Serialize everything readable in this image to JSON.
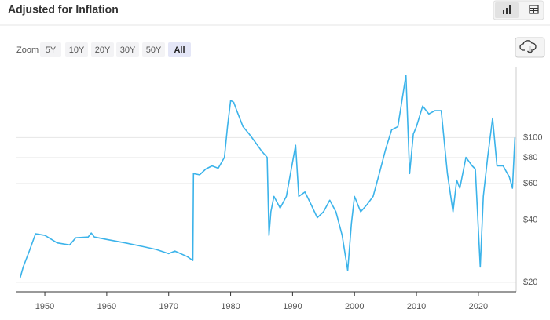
{
  "ui": {
    "zoom_label": "Zoom",
    "zoom_options": [
      "5Y",
      "10Y",
      "20Y",
      "30Y",
      "50Y",
      "All"
    ],
    "zoom_selected": 5
  },
  "chart_data": {
    "type": "line",
    "title": "Adjusted for Inflation",
    "log_scale": true,
    "grid": true,
    "color": "#3bb3ea",
    "x": [
      1946,
      1946.5,
      1947.5,
      1948.5,
      1950,
      1952,
      1954,
      1955,
      1957,
      1957.5,
      1958,
      1960,
      1963,
      1966,
      1968,
      1970,
      1971,
      1973,
      1973.9,
      1974,
      1975,
      1976,
      1977,
      1978,
      1979,
      1979.5,
      1980,
      1980.5,
      1981,
      1982,
      1983,
      1984,
      1985,
      1985.9,
      1986.2,
      1986.5,
      1987,
      1988,
      1989,
      1990.5,
      1991,
      1992,
      1993,
      1994,
      1995,
      1996,
      1997,
      1998,
      1998.9,
      1999.5,
      2000,
      2001,
      2002,
      2003,
      2004,
      2005,
      2006,
      2007,
      2008.3,
      2008.9,
      2009.5,
      2010,
      2011,
      2012,
      2013,
      2014,
      2015,
      2015.9,
      2016.5,
      2017,
      2018,
      2019,
      2019.5,
      2020.3,
      2020.8,
      2021.5,
      2022.3,
      2023,
      2024,
      2025,
      2025.5,
      2025.9
    ],
    "values": [
      20.9,
      23.7,
      28.3,
      34.3,
      33.7,
      31.0,
      30.3,
      32.8,
      33.1,
      34.6,
      33.1,
      32.2,
      31.0,
      29.7,
      28.8,
      27.5,
      28.3,
      26.6,
      25.5,
      67.0,
      66.1,
      70.5,
      73.0,
      71.1,
      80.3,
      113,
      151,
      148,
      135,
      113,
      104,
      94.9,
      86.1,
      80.3,
      33.7,
      43.8,
      52.0,
      45.7,
      52.0,
      91.8,
      52.0,
      54.6,
      47.4,
      41.0,
      43.8,
      49.8,
      43.8,
      33.7,
      22.8,
      38.4,
      52.0,
      43.8,
      47.4,
      52.0,
      67.0,
      87.4,
      109,
      113,
      200,
      67.0,
      104,
      113,
      142,
      130,
      135,
      135,
      67.0,
      43.8,
      62.3,
      56.9,
      80.3,
      73.0,
      70.5,
      23.7,
      52,
      80.3,
      124,
      73.0,
      73,
      64.5,
      56.9,
      100
    ],
    "xlim": [
      1945.3,
      2026.1
    ],
    "xticks": [
      1950,
      1960,
      1970,
      1980,
      1990,
      2000,
      2010,
      2020
    ],
    "ylim": [
      18,
      220
    ],
    "yticks": [
      {
        "value": 20,
        "label": "$20"
      },
      {
        "value": 40,
        "label": "$40"
      },
      {
        "value": 60,
        "label": "$60"
      },
      {
        "value": 80,
        "label": "$80"
      },
      {
        "value": 100,
        "label": "$100"
      }
    ]
  }
}
